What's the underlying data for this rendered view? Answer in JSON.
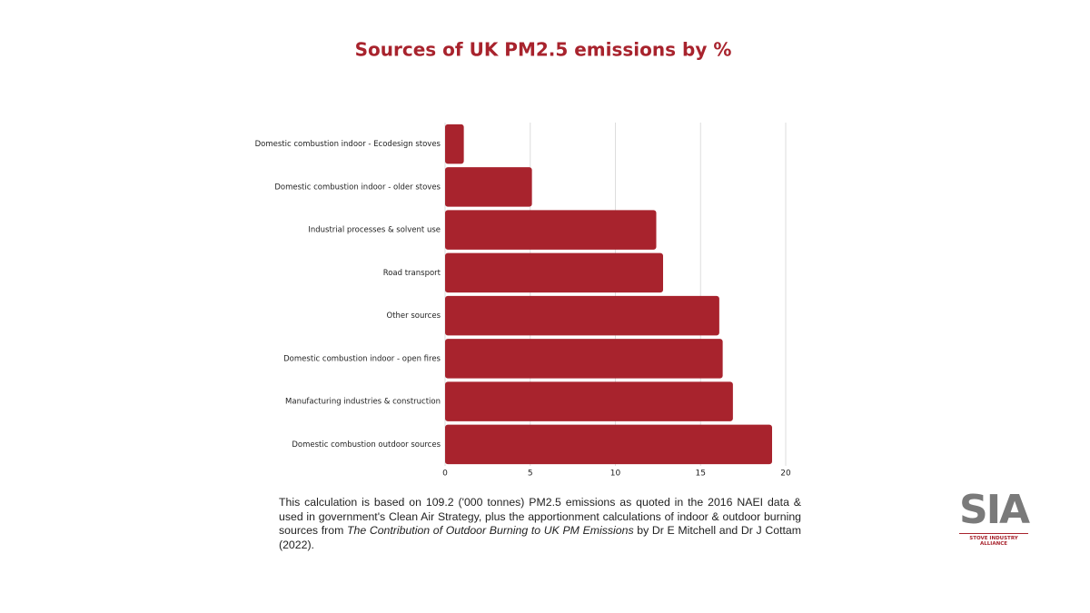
{
  "chart_data": {
    "type": "barh",
    "title": "Sources of UK PM2.5 emissions by %",
    "categories": [
      "Domestic combustion indoor - Ecodesign stoves",
      "Domestic combustion indoor - older stoves",
      "Industrial processes & solvent use",
      "Road transport",
      "Other sources",
      "Domestic combustion indoor - open fires",
      "Manufacturing industries & construction",
      "Domestic combustion outdoor sources"
    ],
    "values": [
      1.1,
      5.1,
      12.4,
      12.8,
      16.1,
      16.3,
      16.9,
      19.2
    ],
    "color": "#a8232d",
    "xlim": [
      0,
      20
    ],
    "xticks": [
      0,
      5,
      10,
      15,
      20
    ],
    "grid": true
  },
  "footnote": {
    "text": "This calculation is based on 109.2 ('000 tonnes) PM2.5 emissions as quoted in the 2016 NAEI data & used in government's Clean Air Strategy, plus the apportionment calculations of indoor & outdoor burning sources from",
    "source_title": "The Contribution of Outdoor Burning to UK PM Emissions",
    "source_rest": "by Dr E Mitchell and Dr J Cottam (2022)."
  },
  "logo": {
    "mark": "SIA",
    "name": "STOVE INDUSTRY ALLIANCE"
  }
}
